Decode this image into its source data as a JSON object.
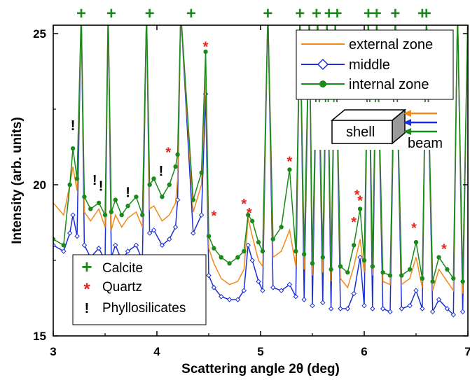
{
  "chart_data": {
    "type": "line",
    "xlabel": "Scattering angle 2θ (deg)",
    "ylabel": "Intensity (arb. units)",
    "xlim": [
      3,
      7
    ],
    "ylim": [
      15,
      25.3
    ],
    "x_ticks": [
      3,
      4,
      5,
      6,
      7
    ],
    "y_ticks": [
      15,
      20,
      25
    ],
    "grid": false,
    "legend_position": "top-right",
    "series": [
      {
        "name": "external zone",
        "color": "#f08a1c",
        "marker": "none",
        "x": [
          3.0,
          3.1,
          3.16,
          3.19,
          3.23,
          3.27,
          3.3,
          3.36,
          3.44,
          3.5,
          3.53,
          3.56,
          3.6,
          3.66,
          3.72,
          3.8,
          3.86,
          3.9,
          3.93,
          3.97,
          4.05,
          4.12,
          4.18,
          4.2,
          4.23,
          4.35,
          4.43,
          4.47,
          4.5,
          4.55,
          4.62,
          4.7,
          4.78,
          4.84,
          4.88,
          4.92,
          4.98,
          5.02,
          5.07,
          5.12,
          5.2,
          5.28,
          5.34,
          5.38,
          5.42,
          5.47,
          5.5,
          5.55,
          5.6,
          5.64,
          5.68,
          5.72,
          5.77,
          5.84,
          5.9,
          5.96,
          6.0,
          6.04,
          6.08,
          6.12,
          6.18,
          6.25,
          6.3,
          6.36,
          6.44,
          6.5,
          6.56,
          6.6,
          6.66,
          6.72,
          6.8,
          6.86,
          6.9,
          6.95,
          7.0
        ],
        "y": [
          19.4,
          19.0,
          20.0,
          20.6,
          19.8,
          25.3,
          19.1,
          18.8,
          19.2,
          18.6,
          25.3,
          18.5,
          19.0,
          18.6,
          18.9,
          19.1,
          18.6,
          25.3,
          19.2,
          19.3,
          18.8,
          19.0,
          19.4,
          20.2,
          25.3,
          19.1,
          20.0,
          23.8,
          17.9,
          17.4,
          16.9,
          16.7,
          16.8,
          17.2,
          18.9,
          18.3,
          17.5,
          17.3,
          25.3,
          17.6,
          17.8,
          18.5,
          17.3,
          25.3,
          17.2,
          25.3,
          17.0,
          25.3,
          17.1,
          25.3,
          16.8,
          25.3,
          16.9,
          16.6,
          17.3,
          18.2,
          17.1,
          25.3,
          17.0,
          25.3,
          16.8,
          16.7,
          25.3,
          16.7,
          16.9,
          17.6,
          16.6,
          25.3,
          16.5,
          17.2,
          16.8,
          16.5,
          25.3,
          16.4,
          25.3
        ]
      },
      {
        "name": "middle",
        "color": "#1a2fd6",
        "marker": "open-diamond",
        "x": [
          3.0,
          3.1,
          3.16,
          3.19,
          3.23,
          3.27,
          3.3,
          3.36,
          3.44,
          3.5,
          3.53,
          3.56,
          3.6,
          3.66,
          3.72,
          3.8,
          3.86,
          3.9,
          3.93,
          3.97,
          4.05,
          4.12,
          4.18,
          4.2,
          4.23,
          4.35,
          4.43,
          4.47,
          4.5,
          4.55,
          4.62,
          4.7,
          4.78,
          4.84,
          4.88,
          4.92,
          4.98,
          5.02,
          5.07,
          5.12,
          5.2,
          5.28,
          5.34,
          5.38,
          5.42,
          5.47,
          5.5,
          5.55,
          5.6,
          5.64,
          5.68,
          5.72,
          5.77,
          5.84,
          5.9,
          5.96,
          6.0,
          6.04,
          6.08,
          6.12,
          6.18,
          6.25,
          6.3,
          6.36,
          6.44,
          6.5,
          6.56,
          6.6,
          6.66,
          6.72,
          6.8,
          6.86,
          6.9,
          6.95,
          7.0
        ],
        "y": [
          18.0,
          17.8,
          18.4,
          19.0,
          18.3,
          25.3,
          18.0,
          17.6,
          17.9,
          17.5,
          25.3,
          17.6,
          18.0,
          17.5,
          17.8,
          18.0,
          17.5,
          25.3,
          18.4,
          18.5,
          18.0,
          18.2,
          18.6,
          19.5,
          25.3,
          18.4,
          19.0,
          23.0,
          17.0,
          16.6,
          16.3,
          16.2,
          16.2,
          16.5,
          18.0,
          17.5,
          16.8,
          16.5,
          25.3,
          16.6,
          16.5,
          16.7,
          16.3,
          25.3,
          16.2,
          25.3,
          16.0,
          25.3,
          16.1,
          25.3,
          15.9,
          25.3,
          15.9,
          15.9,
          16.4,
          17.6,
          16.0,
          25.3,
          15.9,
          25.3,
          15.9,
          15.8,
          25.3,
          15.9,
          16.0,
          16.5,
          15.9,
          25.3,
          15.8,
          16.2,
          15.9,
          15.7,
          25.3,
          15.8,
          25.3
        ]
      },
      {
        "name": "internal zone",
        "color": "#1a8a1a",
        "marker": "filled-circle",
        "x": [
          3.0,
          3.1,
          3.16,
          3.19,
          3.23,
          3.27,
          3.3,
          3.36,
          3.44,
          3.5,
          3.53,
          3.56,
          3.6,
          3.66,
          3.72,
          3.8,
          3.86,
          3.9,
          3.93,
          3.97,
          4.05,
          4.12,
          4.18,
          4.2,
          4.23,
          4.35,
          4.43,
          4.47,
          4.5,
          4.55,
          4.62,
          4.7,
          4.78,
          4.84,
          4.88,
          4.92,
          4.98,
          5.02,
          5.07,
          5.12,
          5.2,
          5.28,
          5.34,
          5.38,
          5.42,
          5.47,
          5.5,
          5.55,
          5.6,
          5.64,
          5.68,
          5.72,
          5.77,
          5.84,
          5.9,
          5.96,
          6.0,
          6.04,
          6.08,
          6.12,
          6.18,
          6.25,
          6.3,
          6.36,
          6.44,
          6.5,
          6.56,
          6.6,
          6.66,
          6.72,
          6.8,
          6.86,
          6.9,
          6.95,
          7.0
        ],
        "y": [
          18.2,
          18.0,
          20.0,
          21.2,
          20.2,
          25.3,
          19.6,
          19.2,
          19.4,
          19.0,
          25.3,
          19.1,
          19.5,
          19.0,
          19.3,
          19.6,
          19.0,
          25.3,
          20.0,
          20.2,
          19.6,
          20.0,
          20.6,
          21.0,
          25.3,
          19.5,
          20.4,
          24.4,
          18.3,
          17.9,
          17.6,
          17.4,
          17.6,
          17.8,
          19.0,
          18.8,
          18.1,
          17.8,
          25.3,
          18.2,
          18.6,
          20.5,
          17.8,
          25.3,
          17.7,
          25.3,
          17.4,
          25.3,
          17.6,
          25.3,
          17.2,
          25.3,
          17.3,
          17.1,
          18.0,
          19.2,
          17.5,
          25.3,
          17.3,
          25.3,
          17.1,
          17.0,
          25.3,
          17.0,
          17.2,
          18.1,
          16.9,
          25.3,
          16.8,
          17.6,
          17.2,
          16.9,
          25.3,
          16.8,
          25.3
        ]
      }
    ],
    "calcite_peaks": [
      3.27,
      3.56,
      3.93,
      4.33,
      5.07,
      5.38,
      5.54,
      5.66,
      5.74,
      6.04,
      6.12,
      6.3,
      6.56,
      6.6
    ],
    "quartz_marks": [
      {
        "x": 4.47,
        "y": 24.6
      },
      {
        "x": 4.55,
        "y": 19.0
      },
      {
        "x": 4.84,
        "y": 19.4
      },
      {
        "x": 4.89,
        "y": 19.1
      },
      {
        "x": 5.28,
        "y": 20.8
      },
      {
        "x": 5.9,
        "y": 18.8
      },
      {
        "x": 5.93,
        "y": 19.7
      },
      {
        "x": 5.96,
        "y": 19.5
      },
      {
        "x": 6.48,
        "y": 18.6
      },
      {
        "x": 4.11,
        "y": 21.1
      },
      {
        "x": 6.77,
        "y": 17.9
      }
    ],
    "phyllosilicate_marks": [
      {
        "x": 3.19,
        "y": 21.8
      },
      {
        "x": 3.4,
        "y": 20.0
      },
      {
        "x": 3.46,
        "y": 19.8
      },
      {
        "x": 3.72,
        "y": 19.6
      },
      {
        "x": 4.04,
        "y": 20.3
      }
    ]
  },
  "legend_markers": {
    "calcite_symbol": "+",
    "calcite_label": "Calcite",
    "quartz_symbol": "*",
    "quartz_label": "Quartz",
    "phyllo_symbol": "!",
    "phyllo_label": "Phyllosilicates"
  },
  "inset": {
    "shell_label": "shell",
    "beam_label": "beam"
  },
  "colors": {
    "calcite": "#1a8a1a",
    "quartz": "#e8251d",
    "phyllosilicates": "#000000",
    "arrow_top": "#f08a1c",
    "arrow_mid": "#1a2fd6",
    "arrow_bottom": "#1a8a1a"
  }
}
